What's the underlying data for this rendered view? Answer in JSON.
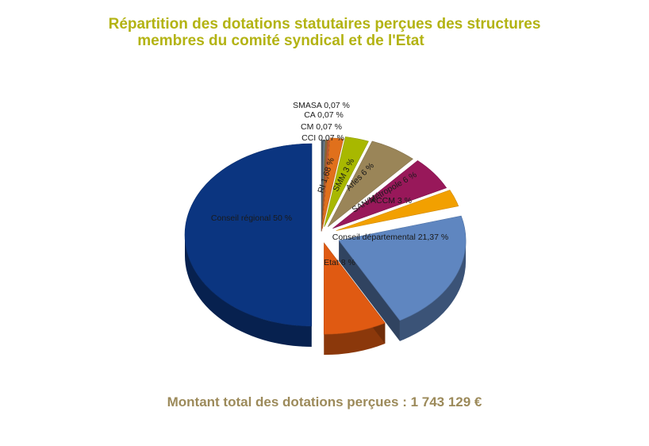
{
  "title_line1": "Répartition des dotations statutaires perçues des structures",
  "title_line2": "membres du comité syndical et de l'Etat",
  "total_label": "Montant total des dotations perçues : 1 743 129 €",
  "chart_data": {
    "type": "pie",
    "style": "3d-exploded",
    "slices": [
      {
        "label": "SMASA 0,07 %",
        "value": 0.07,
        "color": "#4a5a6a"
      },
      {
        "label": "CA 0,07 %",
        "value": 0.07,
        "color": "#6b7b8b"
      },
      {
        "label": "CM 0,07 %",
        "value": 0.07,
        "color": "#8a6a3a"
      },
      {
        "label": "CCI 0,07 %",
        "value": 0.07,
        "color": "#c05a30"
      },
      {
        "label": "RI 1,68 %",
        "value": 1.68,
        "color": "#e0701c"
      },
      {
        "label": "SMM 3 %",
        "value": 3,
        "color": "#a8b800"
      },
      {
        "label": "Arles 6 %",
        "value": 6,
        "color": "#9a8558"
      },
      {
        "label": "SAN/Métropole 6 %",
        "value": 6,
        "color": "#98185a"
      },
      {
        "label": "ACCM 3 %",
        "value": 3,
        "color": "#f2a000"
      },
      {
        "label": "Conseil départemental 21,37 %",
        "value": 21.37,
        "color": "#5f86c0"
      },
      {
        "label": "Etat 8 %",
        "value": 8,
        "color": "#e05a12"
      },
      {
        "label": "Conseil régional 50 %",
        "value": 50,
        "color": "#0b3580"
      }
    ]
  }
}
